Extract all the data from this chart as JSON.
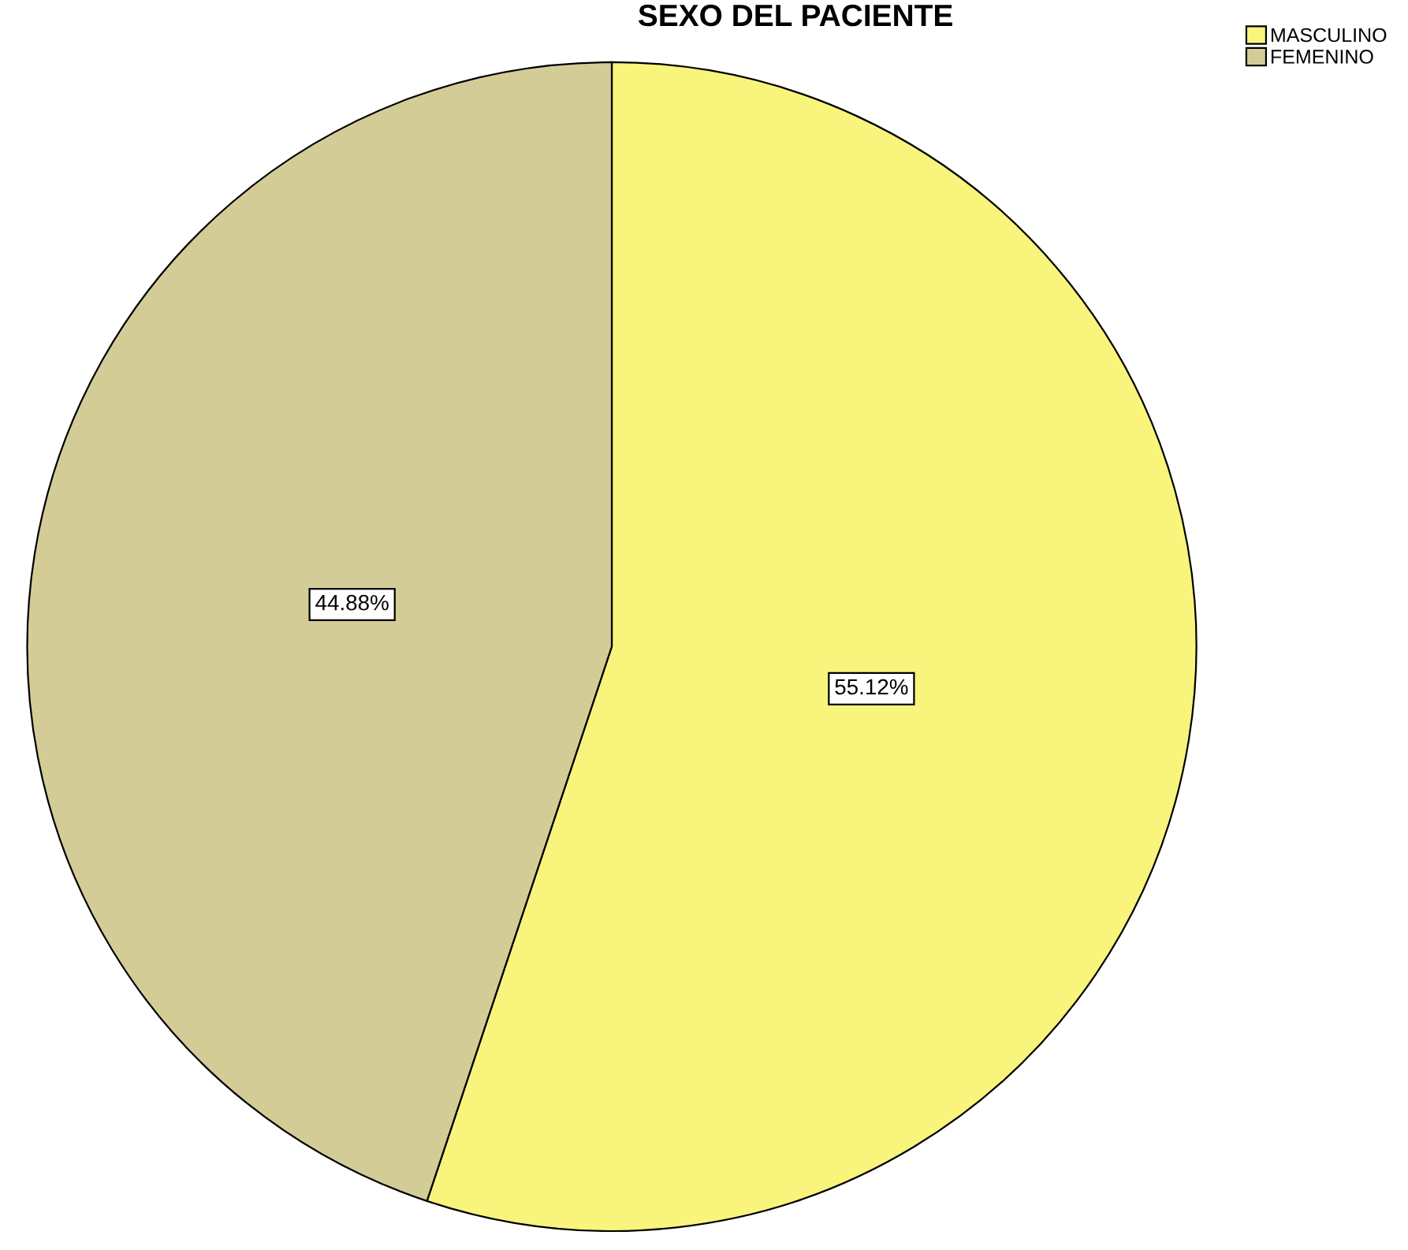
{
  "chart_data": {
    "type": "pie",
    "title": "SEXO DEL PACIENTE",
    "categories": [
      "MASCULINO",
      "FEMENINO"
    ],
    "values": [
      55.12,
      44.88
    ],
    "colors": [
      "#f8f47c",
      "#d4cc97"
    ],
    "value_labels": [
      "55.12%",
      "44.88%"
    ],
    "legend": "top right"
  }
}
